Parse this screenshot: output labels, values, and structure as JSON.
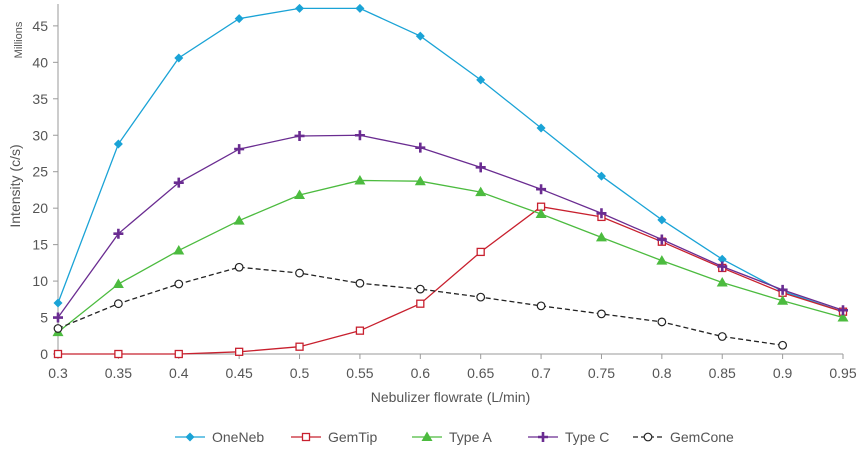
{
  "chart_data": {
    "type": "line",
    "xlabel": "Nebulizer flowrate (L/min)",
    "ylabel": "Intensity (c/s)",
    "y_unit": "Millions",
    "x": [
      0.3,
      0.35,
      0.4,
      0.45,
      0.5,
      0.55,
      0.6,
      0.65,
      0.7,
      0.75,
      0.8,
      0.85,
      0.9,
      0.95
    ],
    "x_tick_labels": [
      "0.3",
      "0.35",
      "0.4",
      "0.45",
      "0.5",
      "0.55",
      "0.6",
      "0.65",
      "0.7",
      "0.75",
      "0.8",
      "0.85",
      "0.9",
      "0.95"
    ],
    "y_ticks": [
      0,
      5,
      10,
      15,
      20,
      25,
      30,
      35,
      40,
      45
    ],
    "xlim": [
      0.3,
      0.95
    ],
    "ylim": [
      0,
      48
    ],
    "grid": false,
    "legend_position": "bottom",
    "series": [
      {
        "name": "OneNeb",
        "color": "#1aa3d6",
        "marker": "diamond",
        "dashed": false,
        "values": [
          7,
          28.8,
          40.6,
          46,
          47.4,
          47.4,
          43.6,
          37.6,
          31,
          24.4,
          18.4,
          13,
          8.6,
          5.8
        ]
      },
      {
        "name": "GemTip",
        "color": "#c8202e",
        "marker": "open-square",
        "dashed": false,
        "values": [
          0,
          0,
          0,
          0.3,
          1,
          3.2,
          6.9,
          14,
          20.2,
          18.8,
          15.4,
          11.8,
          8.4,
          5.8
        ]
      },
      {
        "name": "Type A",
        "color": "#4cbb3f",
        "marker": "triangle",
        "dashed": false,
        "values": [
          3,
          9.6,
          14.2,
          18.3,
          21.8,
          23.8,
          23.7,
          22.2,
          19.2,
          16,
          12.8,
          9.8,
          7.3,
          5
        ]
      },
      {
        "name": "Type C",
        "color": "#6a2c91",
        "marker": "plus",
        "dashed": false,
        "values": [
          5,
          16.5,
          23.5,
          28.1,
          29.9,
          30,
          28.3,
          25.6,
          22.6,
          19.3,
          15.7,
          12,
          8.8,
          6
        ]
      },
      {
        "name": "GemCone",
        "color": "#222222",
        "marker": "open-circle",
        "dashed": true,
        "values": [
          3.5,
          6.9,
          9.6,
          11.9,
          11.1,
          9.7,
          8.9,
          7.8,
          6.6,
          5.5,
          4.4,
          2.4,
          1.2,
          null
        ]
      }
    ]
  }
}
